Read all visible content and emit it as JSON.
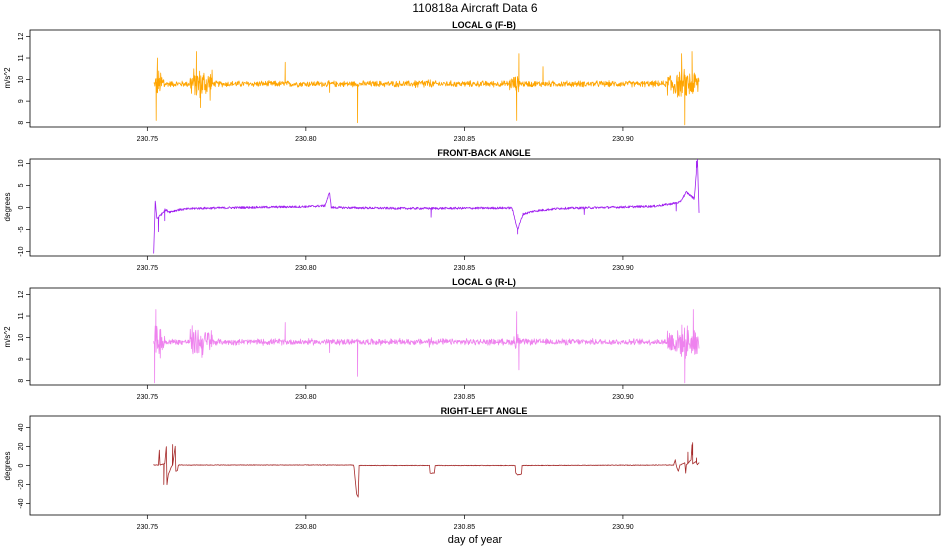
{
  "figure": {
    "title": "110818a   Aircraft Data 6",
    "xlabel": "day of year"
  },
  "chart_data": [
    {
      "type": "line",
      "title": "LOCAL G (F-B)",
      "ylabel": "m/s^2",
      "color": "#FFA500",
      "xlim": [
        230.713,
        231.0
      ],
      "ylim": [
        7.8,
        12.3
      ],
      "x_ticks": [
        "230.75",
        "230.80",
        "230.85",
        "230.90"
      ],
      "y_ticks": [
        "8",
        "9",
        "10",
        "11",
        "12"
      ],
      "series": [
        {
          "base": 9.8,
          "noise": 0.12,
          "x": [
            230.752,
            230.924
          ],
          "bursts": [
            [
              230.7525,
              230.7555,
              0.55
            ],
            [
              230.7635,
              230.7705,
              0.6
            ],
            [
              230.834,
              230.84,
              0.18
            ],
            [
              230.864,
              230.8675,
              0.3
            ],
            [
              230.914,
              230.924,
              0.55
            ]
          ],
          "spikes": [
            [
              230.7528,
              8.1
            ],
            [
              230.7532,
              11.0
            ],
            [
              230.7655,
              11.3
            ],
            [
              230.7668,
              8.7
            ],
            [
              230.7935,
              10.8
            ],
            [
              230.8075,
              9.4
            ],
            [
              230.8163,
              8.0
            ],
            [
              230.8665,
              8.1
            ],
            [
              230.8672,
              11.2
            ],
            [
              230.8748,
              10.6
            ],
            [
              230.9185,
              11.2
            ],
            [
              230.9195,
              7.9
            ],
            [
              230.9218,
              11.3
            ]
          ]
        }
      ]
    },
    {
      "type": "line",
      "title": "FRONT-BACK ANGLE",
      "ylabel": "degrees",
      "color": "#A020F0",
      "xlim": [
        230.713,
        231.0
      ],
      "ylim": [
        -11,
        11
      ],
      "x_ticks": [
        "230.75",
        "230.80",
        "230.85",
        "230.90"
      ],
      "y_ticks": [
        "-10",
        "-5",
        "0",
        "5",
        "10"
      ],
      "series": [
        {
          "baseline": [
            [
              230.752,
              -10.5
            ],
            [
              230.7525,
              1.5
            ],
            [
              230.753,
              -2.5
            ],
            [
              230.7545,
              -1.5
            ],
            [
              230.7555,
              -0.5
            ],
            [
              230.757,
              -1.0
            ],
            [
              230.76,
              -0.5
            ],
            [
              230.765,
              -0.2
            ],
            [
              230.78,
              0.0
            ],
            [
              230.8,
              0.2
            ],
            [
              230.806,
              0.4
            ],
            [
              230.8075,
              3.4
            ],
            [
              230.808,
              0.0
            ],
            [
              230.83,
              -0.2
            ],
            [
              230.84,
              -0.2
            ],
            [
              230.865,
              -0.1
            ],
            [
              230.8668,
              -5.0
            ],
            [
              230.8685,
              -1.5
            ],
            [
              230.872,
              -0.8
            ],
            [
              230.88,
              -0.2
            ],
            [
              230.9,
              0.1
            ],
            [
              230.91,
              0.3
            ],
            [
              230.915,
              0.8
            ],
            [
              230.918,
              1.2
            ],
            [
              230.92,
              3.5
            ],
            [
              230.9225,
              2.0
            ],
            [
              230.9235,
              11.0
            ],
            [
              230.924,
              -1.0
            ]
          ],
          "noise": 0.25,
          "spikes": [
            [
              230.7535,
              -5.5
            ],
            [
              230.7555,
              -3.0
            ],
            [
              230.8395,
              -2.2
            ],
            [
              230.8668,
              -6.0
            ],
            [
              230.8878,
              -1.6
            ],
            [
              230.9168,
              -0.8
            ],
            [
              230.9232,
              10.5
            ]
          ]
        }
      ]
    },
    {
      "type": "line",
      "title": "LOCAL G (R-L)",
      "ylabel": "m/s^2",
      "color": "#EE82EE",
      "xlim": [
        230.713,
        231.0
      ],
      "ylim": [
        7.8,
        12.3
      ],
      "x_ticks": [
        "230.75",
        "230.80",
        "230.85",
        "230.90"
      ],
      "y_ticks": [
        "8",
        "9",
        "10",
        "11",
        "12"
      ],
      "series": [
        {
          "base": 9.8,
          "noise": 0.12,
          "x": [
            230.752,
            230.924
          ],
          "bursts": [
            [
              230.7522,
              230.7555,
              0.65
            ],
            [
              230.7635,
              230.7705,
              0.6
            ],
            [
              230.8385,
              230.8405,
              0.2
            ],
            [
              230.8655,
              230.8675,
              0.35
            ],
            [
              230.914,
              230.924,
              0.6
            ]
          ],
          "spikes": [
            [
              230.7523,
              7.9
            ],
            [
              230.7527,
              11.3
            ],
            [
              230.7935,
              10.7
            ],
            [
              230.8075,
              9.3
            ],
            [
              230.8163,
              8.2
            ],
            [
              230.8665,
              11.2
            ],
            [
              230.8672,
              8.5
            ],
            [
              230.9195,
              7.9
            ],
            [
              230.9222,
              11.3
            ]
          ]
        }
      ]
    },
    {
      "type": "line",
      "title": "RIGHT-LEFT ANGLE",
      "ylabel": "degrees",
      "color": "#A52A2A",
      "xlim": [
        230.713,
        231.0
      ],
      "ylim": [
        -52,
        52
      ],
      "x_ticks": [
        "230.75",
        "230.80",
        "230.85",
        "230.90"
      ],
      "y_ticks": [
        "-40",
        "-20",
        "0",
        "20",
        "40"
      ],
      "series": [
        {
          "baseline": [
            [
              230.752,
              0.5
            ],
            [
              230.7535,
              0.5
            ],
            [
              230.7538,
              16.0
            ],
            [
              230.754,
              0.5
            ],
            [
              230.7555,
              2.0
            ],
            [
              230.756,
              20.0
            ],
            [
              230.7562,
              -20.0
            ],
            [
              230.7566,
              -10.0
            ],
            [
              230.7575,
              -2.0
            ],
            [
              230.758,
              0.5
            ],
            [
              230.7588,
              20.0
            ],
            [
              230.759,
              -6.0
            ],
            [
              230.7595,
              -5.0
            ],
            [
              230.7598,
              0.5
            ],
            [
              230.815,
              0.5
            ],
            [
              230.8152,
              -2.0
            ],
            [
              230.816,
              -30.0
            ],
            [
              230.8165,
              -33.0
            ],
            [
              230.8168,
              0.0
            ],
            [
              230.839,
              0.0
            ],
            [
              230.8392,
              -8.0
            ],
            [
              230.8405,
              -8.0
            ],
            [
              230.8408,
              0.0
            ],
            [
              230.866,
              0.0
            ],
            [
              230.8662,
              -8.0
            ],
            [
              230.8668,
              -10.0
            ],
            [
              230.868,
              -9.0
            ],
            [
              230.8682,
              0.0
            ],
            [
              230.916,
              0.5
            ],
            [
              230.9165,
              6.0
            ],
            [
              230.9168,
              0.5
            ],
            [
              230.917,
              -2.0
            ],
            [
              230.9175,
              -6.0
            ],
            [
              230.918,
              0.5
            ],
            [
              230.9195,
              3.0
            ],
            [
              230.9198,
              -8.0
            ],
            [
              230.92,
              0.5
            ],
            [
              230.9215,
              6.0
            ],
            [
              230.9218,
              22.0
            ],
            [
              230.922,
              2.0
            ],
            [
              230.923,
              4.0
            ],
            [
              230.9235,
              1.0
            ],
            [
              230.924,
              3.0
            ]
          ],
          "noise": 0.3,
          "spikes": [
            [
              230.7552,
              -20.0
            ],
            [
              230.758,
              22.0
            ],
            [
              230.9205,
              14.0
            ],
            [
              230.922,
              24.0
            ],
            [
              230.9232,
              8.0
            ]
          ]
        }
      ]
    }
  ]
}
